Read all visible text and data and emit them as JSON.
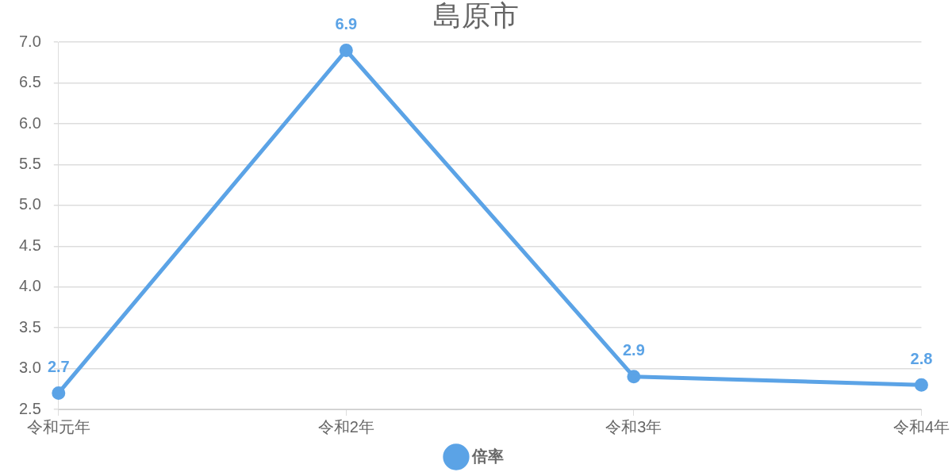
{
  "chart_data": {
    "type": "line",
    "title": "島原市",
    "categories": [
      "令和元年",
      "令和2年",
      "令和3年",
      "令和4年"
    ],
    "series": [
      {
        "name": "倍率",
        "color": "#5ba3e6",
        "values": [
          2.7,
          6.9,
          2.9,
          2.8
        ]
      }
    ],
    "ylim": [
      2.5,
      7.0
    ],
    "yticks": [
      2.5,
      {
        "value": 3,
        "label": "3.0"
      },
      3.5,
      {
        "value": 4,
        "label": "4.0"
      },
      4.5,
      {
        "value": 5,
        "label": "5.0"
      },
      5.5,
      {
        "value": 6,
        "label": "6.0"
      },
      6.5,
      {
        "value": 7,
        "label": "7.0"
      }
    ],
    "grid": "y",
    "legend": "bottom",
    "marker": "circle",
    "line_style": "solid",
    "data_labels": true
  }
}
